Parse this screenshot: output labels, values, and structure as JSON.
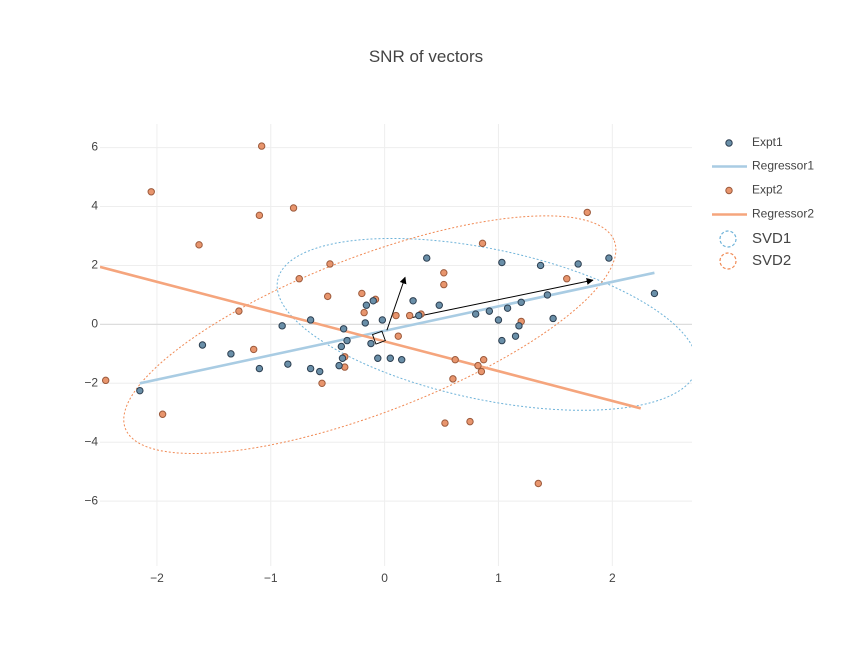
{
  "chart_data": {
    "type": "scatter",
    "title": "SNR of vectors",
    "xlabel": "",
    "ylabel": "",
    "xlim": [
      -2.5,
      2.7
    ],
    "ylim": [
      -8.2,
      6.8
    ],
    "x_ticks": [
      -2,
      -1,
      0,
      1,
      2
    ],
    "x_tick_labels": [
      "−2",
      "−1",
      "0",
      "1",
      "2"
    ],
    "y_ticks": [
      -6,
      -4,
      -2,
      0,
      2,
      4,
      6
    ],
    "y_tick_labels": [
      "−6",
      "−4",
      "−2",
      "0",
      "2",
      "4",
      "6"
    ],
    "grid": true,
    "legend_position": "right",
    "colors": {
      "expt1_marker": "#6a8fa8",
      "expt1_edge": "#2c3e50",
      "regressor1": "#a9cce3",
      "expt2_marker": "#e8956d",
      "expt2_edge": "#9c5a3c",
      "regressor2": "#f5a57d",
      "svd1": "#6fb3d9",
      "svd2": "#f08a55",
      "arrow": "#000000",
      "grid": "#eeeeee"
    },
    "series": [
      {
        "name": "Expt1",
        "kind": "markers",
        "points": [
          [
            -2.15,
            -2.25
          ],
          [
            -1.6,
            -0.7
          ],
          [
            -1.35,
            -1.0
          ],
          [
            -1.1,
            -1.5
          ],
          [
            -0.85,
            -1.35
          ],
          [
            -0.65,
            0.15
          ],
          [
            -0.65,
            -1.5
          ],
          [
            -0.57,
            -1.6
          ],
          [
            -0.4,
            -1.4
          ],
          [
            -0.38,
            -0.75
          ],
          [
            -0.37,
            -1.15
          ],
          [
            -0.36,
            -0.15
          ],
          [
            -0.33,
            -0.55
          ],
          [
            -0.17,
            0.05
          ],
          [
            -0.16,
            0.65
          ],
          [
            -0.1,
            0.8
          ],
          [
            -0.12,
            -0.65
          ],
          [
            -0.06,
            -1.15
          ],
          [
            -0.02,
            0.15
          ],
          [
            0.05,
            -1.15
          ],
          [
            0.15,
            -1.2
          ],
          [
            0.25,
            0.8
          ],
          [
            0.3,
            0.3
          ],
          [
            0.37,
            2.25
          ],
          [
            0.48,
            0.65
          ],
          [
            0.8,
            0.35
          ],
          [
            0.92,
            0.45
          ],
          [
            1.0,
            0.15
          ],
          [
            1.03,
            -0.55
          ],
          [
            1.03,
            2.1
          ],
          [
            1.08,
            0.55
          ],
          [
            1.15,
            -0.4
          ],
          [
            1.18,
            -0.05
          ],
          [
            1.2,
            0.75
          ],
          [
            1.37,
            2.0
          ],
          [
            1.43,
            1.0
          ],
          [
            1.48,
            0.2
          ],
          [
            1.7,
            2.05
          ],
          [
            1.97,
            2.25
          ],
          [
            2.37,
            1.05
          ],
          [
            -0.9,
            -0.05
          ]
        ]
      },
      {
        "name": "Regressor1",
        "kind": "line",
        "points": [
          [
            -2.15,
            -2.0
          ],
          [
            2.37,
            1.75
          ]
        ]
      },
      {
        "name": "Expt2",
        "kind": "markers",
        "points": [
          [
            -2.45,
            -1.9
          ],
          [
            -2.05,
            4.5
          ],
          [
            -1.95,
            -3.05
          ],
          [
            -1.63,
            2.7
          ],
          [
            -1.28,
            0.45
          ],
          [
            -1.15,
            -0.85
          ],
          [
            -1.1,
            3.7
          ],
          [
            -1.08,
            6.05
          ],
          [
            -0.8,
            3.95
          ],
          [
            -0.75,
            1.55
          ],
          [
            -0.55,
            -2.0
          ],
          [
            -0.5,
            0.95
          ],
          [
            -0.48,
            2.05
          ],
          [
            -0.35,
            -1.1
          ],
          [
            -0.35,
            -1.45
          ],
          [
            -0.2,
            1.05
          ],
          [
            -0.18,
            0.4
          ],
          [
            -0.08,
            0.85
          ],
          [
            0.1,
            0.3
          ],
          [
            0.12,
            -0.4
          ],
          [
            0.22,
            0.3
          ],
          [
            0.32,
            0.35
          ],
          [
            0.52,
            1.35
          ],
          [
            0.52,
            1.75
          ],
          [
            0.53,
            -3.35
          ],
          [
            0.6,
            -1.85
          ],
          [
            0.62,
            -1.2
          ],
          [
            0.75,
            -3.3
          ],
          [
            0.82,
            -1.4
          ],
          [
            0.85,
            -1.6
          ],
          [
            0.86,
            2.75
          ],
          [
            0.87,
            -1.2
          ],
          [
            1.2,
            0.1
          ],
          [
            1.35,
            -5.4
          ],
          [
            1.6,
            1.55
          ],
          [
            1.78,
            3.8
          ]
        ]
      },
      {
        "name": "Regressor2",
        "kind": "line",
        "points": [
          [
            -2.5,
            1.95
          ],
          [
            2.25,
            -2.85
          ]
        ]
      },
      {
        "name": "SVD1",
        "kind": "ellipse",
        "center": [
          0.9,
          0.0
        ],
        "semi_major": 1.88,
        "semi_minor": 2.55,
        "rotation_deg": 12
      },
      {
        "name": "SVD2",
        "kind": "ellipse",
        "center": [
          -0.13,
          -0.35
        ],
        "semi_major": 2.3,
        "semi_minor": 2.65,
        "rotation_deg": -21
      }
    ],
    "arrows": [
      {
        "from": [
          0.2,
          0.2
        ],
        "to": [
          1.83,
          1.5
        ]
      },
      {
        "from": [
          0.02,
          -0.2
        ],
        "to": [
          0.18,
          1.6
        ]
      }
    ],
    "right_angle_marker": {
      "at": [
        -0.05,
        -0.45
      ],
      "size": 0.08
    },
    "legend": [
      {
        "label": "Expt1",
        "type": "marker",
        "color_key": "expt1_marker",
        "edge_key": "expt1_edge"
      },
      {
        "label": "Regressor1",
        "type": "line",
        "color_key": "regressor1"
      },
      {
        "label": "Expt2",
        "type": "marker",
        "color_key": "expt2_marker",
        "edge_key": "expt2_edge"
      },
      {
        "label": "Regressor2",
        "type": "line",
        "color_key": "regressor2"
      },
      {
        "label": "SVD1",
        "type": "circle-dashed",
        "color_key": "svd1"
      },
      {
        "label": "SVD2",
        "type": "circle-dashed",
        "color_key": "svd2"
      }
    ]
  }
}
